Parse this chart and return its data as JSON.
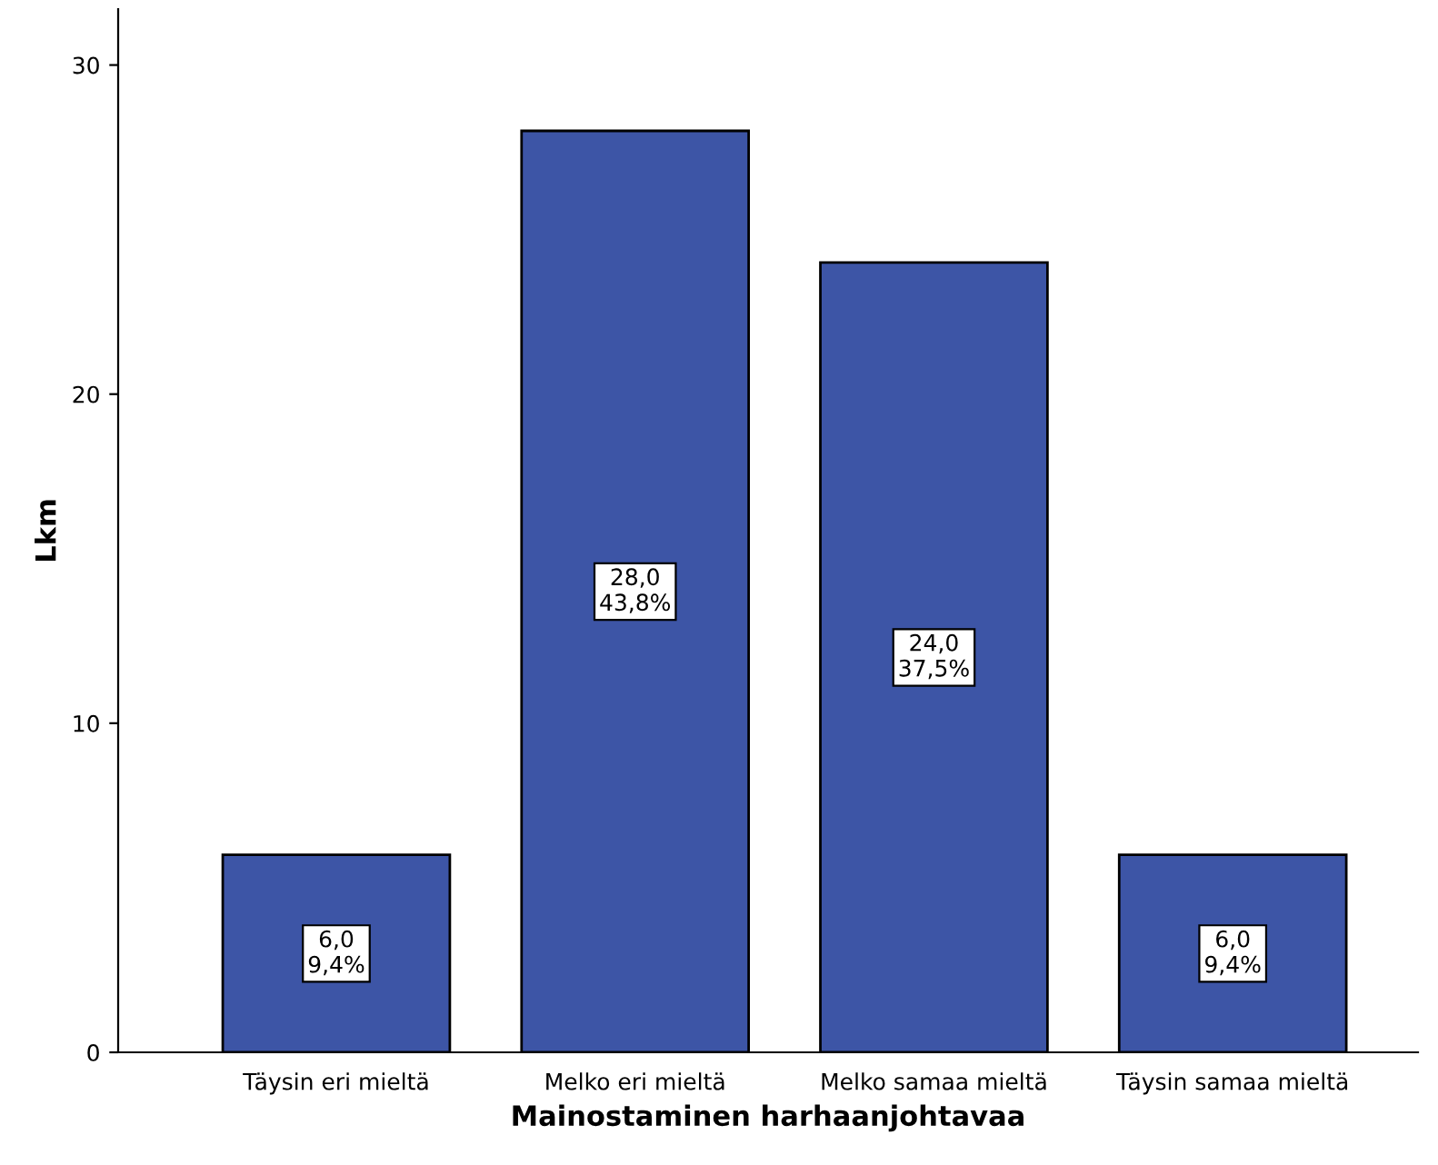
{
  "chart_data": {
    "type": "bar",
    "xlabel": "Mainostaminen harhaanjohtavaa",
    "ylabel": "Lkm",
    "categories": [
      "Täysin eri mieltä",
      "Melko eri mieltä",
      "Melko samaa mieltä",
      "Täysin samaa mieltä"
    ],
    "values": [
      6,
      28,
      24,
      6
    ],
    "color": "#3d55a6",
    "value_labels": [
      "6,0\n9,4%",
      "28,0\n43,8%",
      "24,0\n37,5%",
      "6,0\n9,4%"
    ],
    "ylim": [
      0,
      31.7
    ],
    "yticks": [
      0,
      10,
      20,
      30
    ],
    "grid": false
  }
}
